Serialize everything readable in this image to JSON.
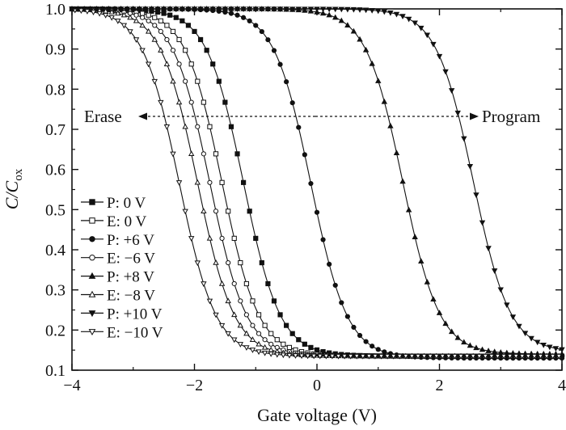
{
  "chart_data": {
    "type": "line",
    "xlabel": "Gate voltage (V)",
    "ylabel": {
      "main": "C/C",
      "sub": "ox"
    },
    "xlim": [
      -4,
      4
    ],
    "ylim": [
      0.1,
      1.0
    ],
    "xticks": [
      -4,
      -2,
      0,
      2,
      4
    ],
    "xtick_labels": [
      "−4",
      "−2",
      "0",
      "2",
      "4"
    ],
    "yticks": [
      0.1,
      0.2,
      0.3,
      0.4,
      0.5,
      0.6,
      0.7,
      0.8,
      0.9,
      1.0
    ],
    "ytick_labels": [
      "0.1",
      "0.2",
      "0.3",
      "0.4",
      "0.5",
      "0.6",
      "0.7",
      "0.8",
      "0.9",
      "1.0"
    ],
    "grid": false,
    "legend_position": "lower-left",
    "annotations": {
      "erase": {
        "text": "Erase",
        "y": 0.725,
        "x_from": 0.8,
        "x_to": -3.1
      },
      "program": {
        "text": "Program",
        "y": 0.725,
        "x_from": 0.8,
        "x_to": 2.85
      }
    },
    "series": [
      {
        "name": "P: 0 V",
        "marker": "square-filled",
        "vfb": -1.2,
        "cmin": 0.135
      },
      {
        "name": "E: 0 V",
        "marker": "square-open",
        "vfb": -1.55,
        "cmin": 0.135
      },
      {
        "name": "P: +6 V",
        "marker": "circle-filled",
        "vfb": -0.1,
        "cmin": 0.13
      },
      {
        "name": "E: −6 V",
        "marker": "circle-open",
        "vfb": -1.75,
        "cmin": 0.135
      },
      {
        "name": "P: +8 V",
        "marker": "triangle-up-filled",
        "vfb": 1.4,
        "cmin": 0.14
      },
      {
        "name": "E: −8 V",
        "marker": "triangle-up-open",
        "vfb": -1.95,
        "cmin": 0.135
      },
      {
        "name": "P: +10 V",
        "marker": "triangle-down-filled",
        "vfb": 2.55,
        "cmin": 0.145
      },
      {
        "name": "E: −10 V",
        "marker": "triangle-down-open",
        "vfb": -2.25,
        "cmin": 0.135
      }
    ]
  }
}
